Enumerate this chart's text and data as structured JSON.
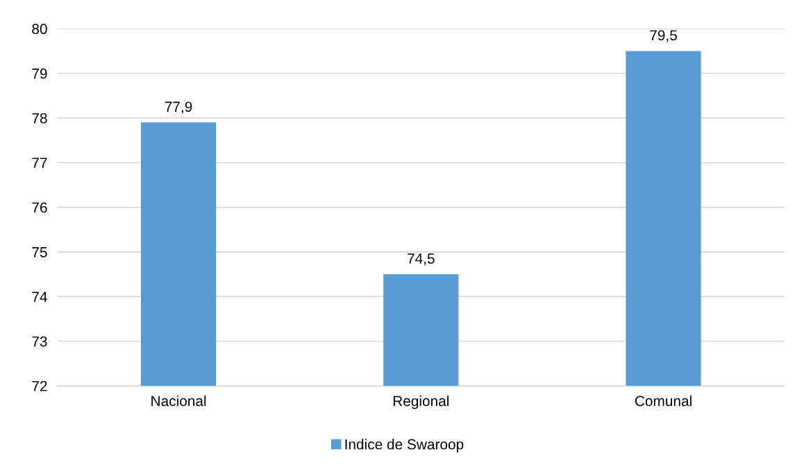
{
  "chart_data": {
    "type": "bar",
    "categories": [
      "Nacional",
      "Regional",
      "Comunal"
    ],
    "series": [
      {
        "name": "Indice de Swaroop",
        "color": "#5b9bd5",
        "values": [
          77.9,
          74.5,
          79.5
        ],
        "value_labels": [
          "77,9",
          "74,5",
          "79,5"
        ]
      }
    ],
    "ylim": [
      72,
      80
    ],
    "yticks": [
      72,
      73,
      74,
      75,
      76,
      77,
      78,
      79,
      80
    ],
    "grid": "y",
    "legend": "bottom"
  }
}
